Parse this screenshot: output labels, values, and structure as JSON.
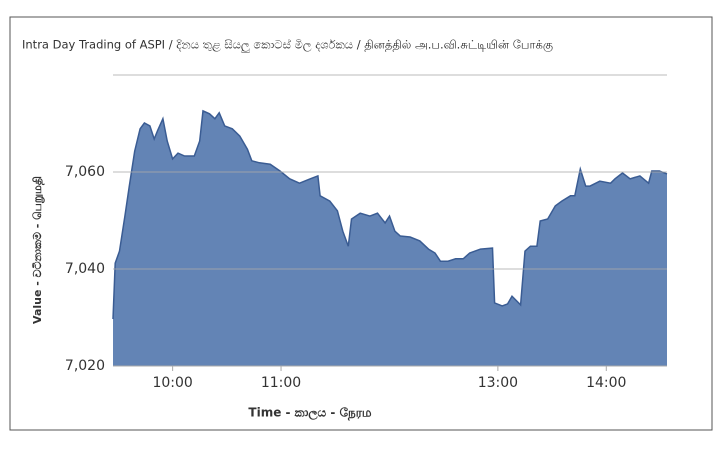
{
  "chart_data": {
    "type": "area",
    "title": "Intra Day Trading of ASPI / දිනය තුළ සියලු කොටස් මිල දර්ශකය  / தினத்தில் அ.ப.வி.சுட்டியின் போக்கு",
    "x_label": "Time - කාලය - நேரம",
    "y_label": "Value - වටිනාකම - பெறுமதி",
    "x": [
      9.45,
      9.47,
      9.51,
      9.56,
      9.6,
      9.65,
      9.7,
      9.74,
      9.79,
      9.83,
      9.86,
      9.91,
      9.95,
      10.0,
      10.05,
      10.11,
      10.2,
      10.25,
      10.28,
      10.34,
      10.39,
      10.43,
      10.48,
      10.55,
      10.62,
      10.69,
      10.73,
      10.8,
      10.9,
      10.99,
      11.08,
      11.17,
      11.27,
      11.34,
      11.36,
      11.45,
      11.52,
      11.57,
      11.62,
      11.65,
      11.73,
      11.82,
      11.89,
      11.96,
      12.0,
      12.05,
      12.1,
      12.19,
      12.28,
      12.36,
      12.42,
      12.47,
      12.54,
      12.61,
      12.68,
      12.74,
      12.84,
      12.95,
      12.97,
      13.04,
      13.09,
      13.13,
      13.21,
      13.25,
      13.3,
      13.36,
      13.39,
      13.46,
      13.53,
      13.59,
      13.67,
      13.71,
      13.76,
      13.81,
      13.85,
      13.94,
      14.04,
      14.08,
      14.15,
      14.22,
      14.31,
      14.39,
      14.42,
      14.49,
      14.56
    ],
    "series": [
      {
        "name": "ASPI",
        "color": "#5b7db1",
        "values": [
          7029.7,
          7041.2,
          7043.7,
          7050.9,
          7057.1,
          7064.3,
          7068.9,
          7070.1,
          7069.5,
          7066.8,
          7068.5,
          7071.0,
          7066.4,
          7062.7,
          7063.9,
          7063.3,
          7063.3,
          7066.4,
          7072.6,
          7072.0,
          7071.0,
          7072.2,
          7069.5,
          7068.9,
          7067.4,
          7064.7,
          7062.3,
          7061.9,
          7061.6,
          7060.2,
          7058.6,
          7057.7,
          7058.6,
          7059.2,
          7055.1,
          7054.0,
          7052.0,
          7047.8,
          7044.7,
          7050.3,
          7051.5,
          7050.9,
          7051.5,
          7049.5,
          7050.9,
          7047.8,
          7046.8,
          7046.6,
          7045.8,
          7044.1,
          7043.3,
          7041.6,
          7041.6,
          7042.1,
          7042.1,
          7043.3,
          7044.1,
          7044.3,
          7033.0,
          7032.4,
          7032.8,
          7034.4,
          7032.6,
          7043.7,
          7044.7,
          7044.7,
          7049.9,
          7050.3,
          7053.0,
          7054.0,
          7055.1,
          7055.1,
          7060.6,
          7057.1,
          7057.1,
          7058.1,
          7057.7,
          7058.6,
          7059.8,
          7058.6,
          7059.2,
          7057.7,
          7060.2,
          7060.2,
          7059.6
        ]
      }
    ],
    "xlim": [
      9.45,
      14.56
    ],
    "xticks": [
      {
        "value": 10,
        "label": "10:00"
      },
      {
        "value": 11,
        "label": "11:00"
      },
      {
        "value": 13,
        "label": "13:00"
      },
      {
        "value": 14,
        "label": "14:00"
      }
    ],
    "ylim": [
      7020,
      7080
    ],
    "yticks": [
      {
        "value": 7020,
        "label": "7,020"
      },
      {
        "value": 7040,
        "label": "7,040"
      },
      {
        "value": 7060,
        "label": "7,060"
      }
    ],
    "grid": true
  }
}
